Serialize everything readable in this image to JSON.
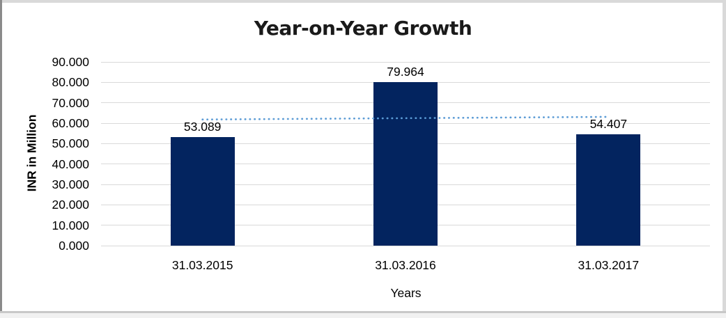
{
  "chart_data": {
    "type": "bar",
    "title": "Year-on-Year Growth",
    "categories": [
      "31.03.2015",
      "31.03.2016",
      "31.03.2017"
    ],
    "values": [
      53.089,
      79.964,
      54.407
    ],
    "data_labels": [
      "53.089",
      "79.964",
      "54.407"
    ],
    "xlabel": "Years",
    "ylabel": "INR in Million",
    "ylim": [
      0,
      90
    ],
    "ytick_step": 10,
    "ytick_labels": [
      "90.000",
      "80.000",
      "70.000",
      "60.000",
      "50.000",
      "40.000",
      "30.000",
      "20.000",
      "10.000",
      "0.000"
    ],
    "grid": true,
    "legend": "none",
    "bar_color": "#03245f",
    "gridline_color": "#d9d9d9",
    "text_color": "#000000",
    "trendline": {
      "type": "linear",
      "style": "dotted",
      "color": "#5b9bd5",
      "start_value": 61.8,
      "end_value": 63.1
    }
  }
}
